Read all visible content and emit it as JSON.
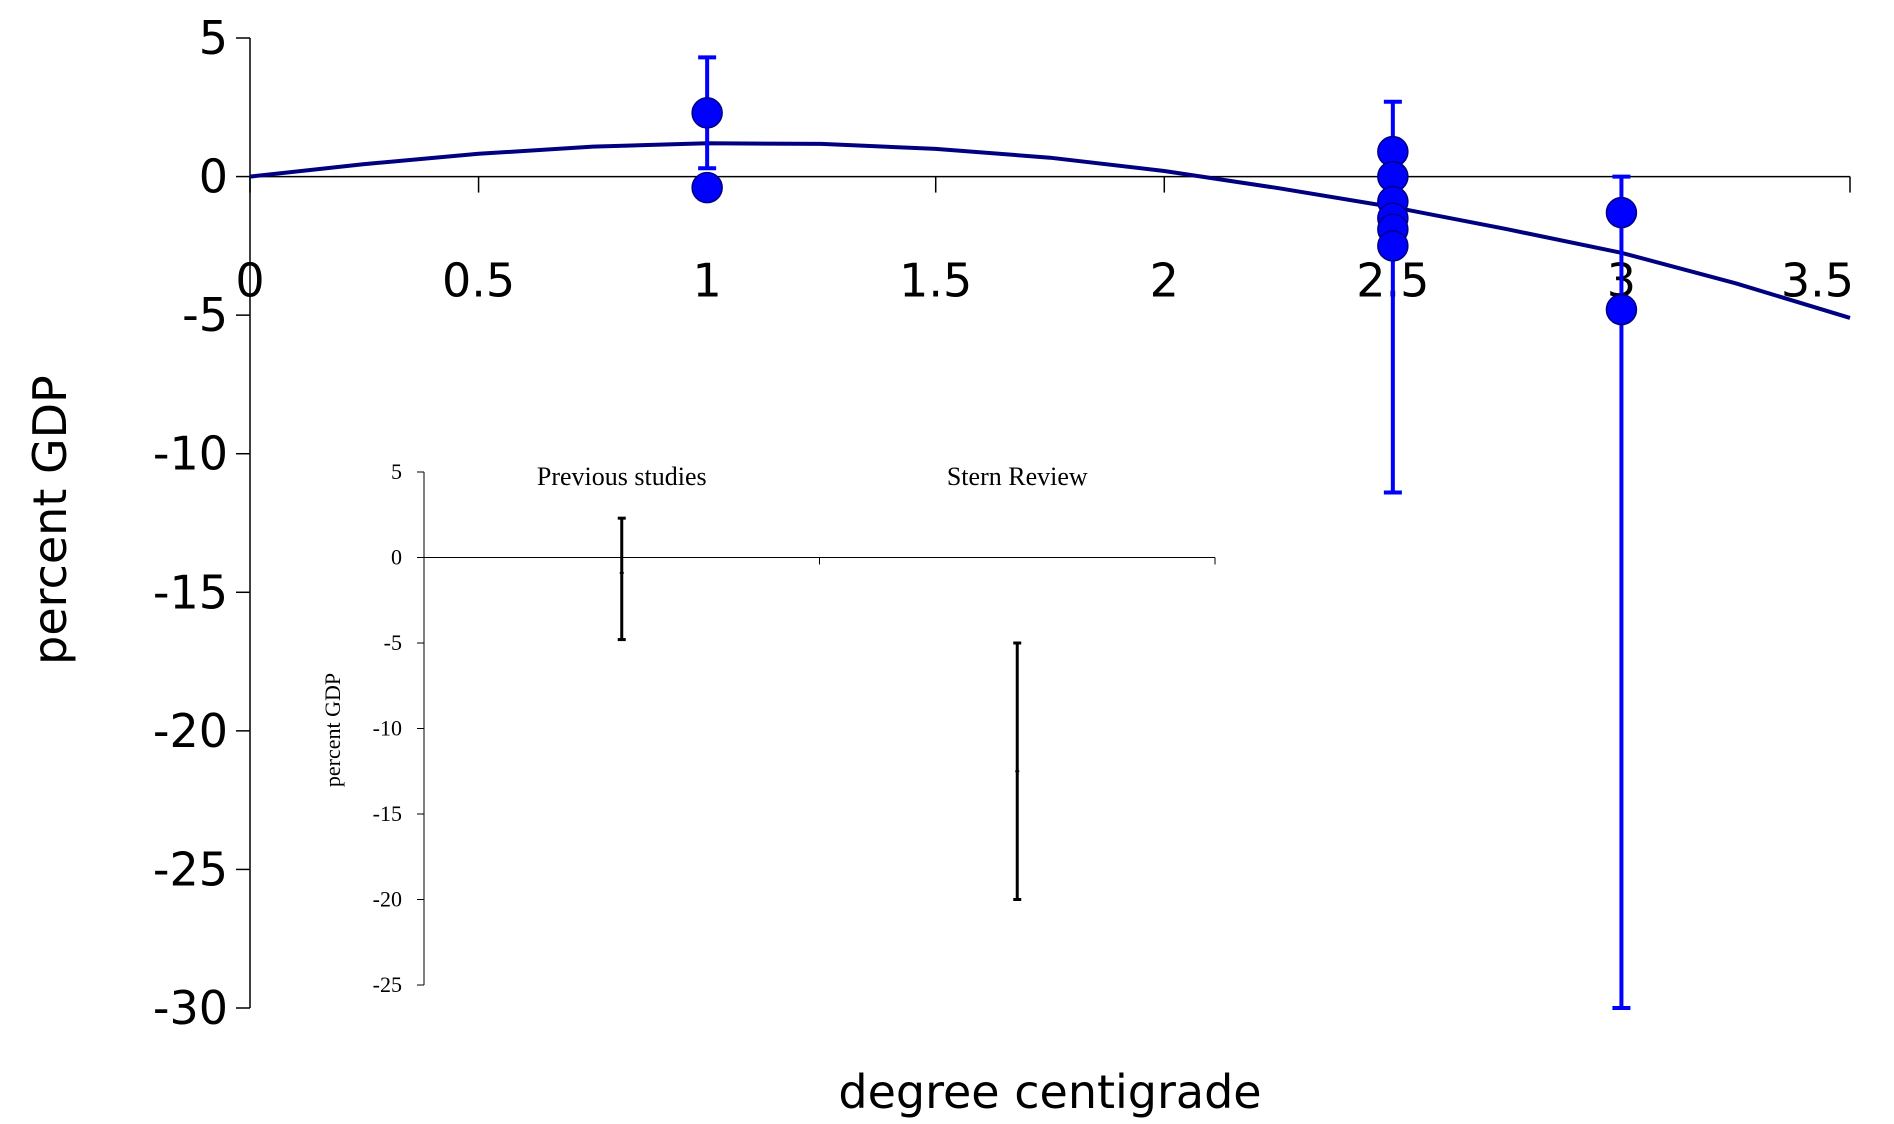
{
  "chart_data": [
    {
      "type": "scatter",
      "xlabel": "degree centigrade",
      "ylabel": "percent GDP",
      "xlim": [
        0,
        3.5
      ],
      "ylim": [
        -30,
        5
      ],
      "x_ticks": [
        "0",
        "0.5",
        "1",
        "1.5",
        "2",
        "2.5",
        "3",
        "3.5"
      ],
      "y_ticks": [
        "5",
        "0",
        "-5",
        "-10",
        "-15",
        "-20",
        "-25",
        "-30"
      ],
      "x_tick_values": [
        0,
        0.5,
        1,
        1.5,
        2,
        2.5,
        3,
        3.5
      ],
      "y_tick_values": [
        5,
        0,
        -5,
        -10,
        -15,
        -20,
        -25,
        -30
      ],
      "grid": false,
      "legend": "none",
      "points": [
        {
          "x": 1,
          "y": 2.3
        },
        {
          "x": 1,
          "y": -0.4
        },
        {
          "x": 2.5,
          "y": 0.9
        },
        {
          "x": 2.5,
          "y": 0.0
        },
        {
          "x": 2.5,
          "y": -0.9
        },
        {
          "x": 2.5,
          "y": -1.5
        },
        {
          "x": 2.5,
          "y": -1.9
        },
        {
          "x": 2.5,
          "y": -2.5
        },
        {
          "x": 3,
          "y": -1.3
        },
        {
          "x": 3,
          "y": -4.8
        }
      ],
      "error_bars": [
        {
          "x": 1,
          "low": 0.3,
          "high": 4.3
        },
        {
          "x": 2.5,
          "low": -11.4,
          "high": 2.7
        },
        {
          "x": 3,
          "low": -30,
          "high": 0
        }
      ],
      "fit_curve": {
        "x": [
          0,
          0.25,
          0.5,
          0.75,
          1,
          1.25,
          1.5,
          1.75,
          2,
          2.25,
          2.5,
          2.75,
          3,
          3.25,
          3.5
        ],
        "y": [
          0,
          0.45,
          0.82,
          1.08,
          1.2,
          1.18,
          1.0,
          0.68,
          0.2,
          -0.42,
          -1.1,
          -1.9,
          -2.75,
          -3.85,
          -5.1
        ]
      },
      "colors": {
        "points": "#0000ff",
        "error_bars": "#0000ff",
        "fit_curve": "#000080",
        "axes": "#000000"
      }
    },
    {
      "type": "bar",
      "subtype": "range",
      "ylabel": "percent GDP",
      "ylim": [
        -25,
        5
      ],
      "y_ticks": [
        "5",
        "0",
        "-5",
        "-10",
        "-15",
        "-20",
        "-25"
      ],
      "y_tick_values": [
        5,
        0,
        -5,
        -10,
        -15,
        -20,
        -25
      ],
      "categories": [
        "Previous studies",
        "Stern Review"
      ],
      "ranges": [
        {
          "category": "Previous studies",
          "low": -4.8,
          "high": 2.3,
          "mid": -0.9
        },
        {
          "category": "Stern Review",
          "low": -20,
          "high": -5,
          "mid": -12.5
        }
      ],
      "grid": false,
      "legend": "none",
      "colors": {
        "ranges": "#000000",
        "axes": "#000000"
      }
    }
  ]
}
